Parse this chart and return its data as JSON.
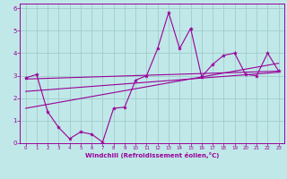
{
  "xlabel": "Windchill (Refroidissement éolien,°C)",
  "background_color": "#c0e8e8",
  "grid_color": "#a0cccc",
  "line_color": "#990099",
  "xlim": [
    -0.5,
    23.5
  ],
  "ylim": [
    0,
    6.2
  ],
  "xticks": [
    0,
    1,
    2,
    3,
    4,
    5,
    6,
    7,
    8,
    9,
    10,
    11,
    12,
    13,
    14,
    15,
    16,
    17,
    18,
    19,
    20,
    21,
    22,
    23
  ],
  "yticks": [
    0,
    1,
    2,
    3,
    4,
    5,
    6
  ],
  "data_x": [
    0,
    1,
    2,
    3,
    4,
    5,
    6,
    7,
    8,
    9,
    10,
    11,
    12,
    13,
    14,
    15,
    16,
    17,
    18,
    19,
    20,
    21,
    22,
    23
  ],
  "data_y": [
    2.9,
    3.05,
    1.4,
    0.7,
    0.2,
    0.5,
    0.4,
    0.05,
    1.55,
    1.6,
    2.8,
    3.0,
    4.2,
    5.8,
    4.2,
    5.1,
    2.95,
    3.5,
    3.9,
    4.0,
    3.05,
    3.0,
    4.0,
    3.2
  ],
  "trend1_x": [
    0,
    23
  ],
  "trend1_y": [
    2.85,
    3.2
  ],
  "trend2_x": [
    0,
    23
  ],
  "trend2_y": [
    1.55,
    3.55
  ],
  "trend3_x": [
    0,
    23
  ],
  "trend3_y": [
    2.3,
    3.15
  ]
}
